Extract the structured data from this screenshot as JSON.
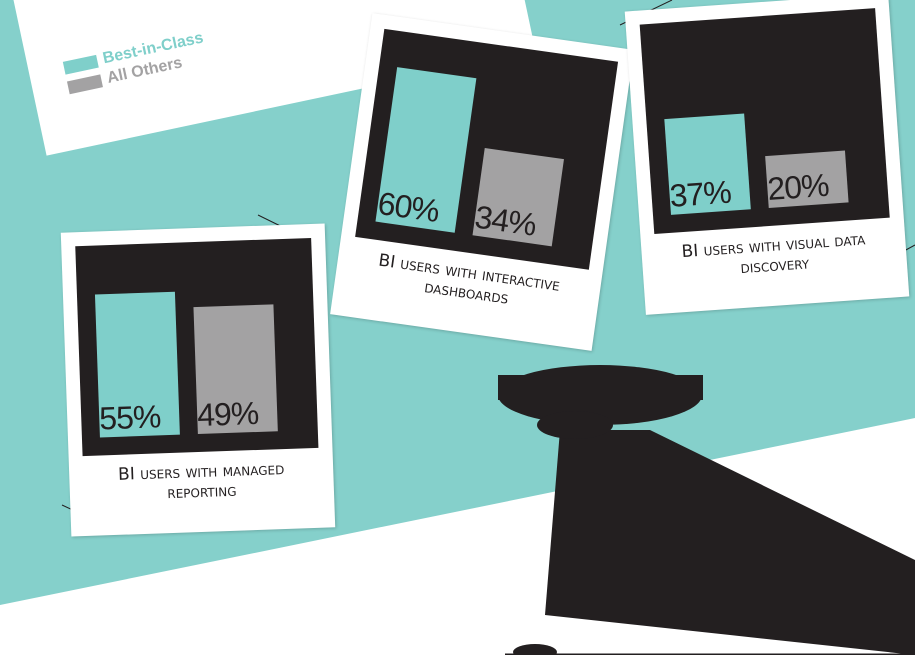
{
  "legend": {
    "items": [
      {
        "name": "Best-in-Class",
        "color": "#7fcfca"
      },
      {
        "name": "All Others",
        "color": "#a3a2a3"
      }
    ]
  },
  "chart_data": [
    {
      "type": "bar",
      "title": "BI users with managed reporting",
      "values": [
        55,
        49
      ],
      "value_labels": [
        "55%",
        "49%"
      ]
    },
    {
      "type": "bar",
      "title": "BI users with interactive dashboards",
      "values": [
        60,
        34
      ],
      "value_labels": [
        "60%",
        "34%"
      ]
    },
    {
      "type": "bar",
      "title": "BI users with visual data discovery",
      "values": [
        37,
        20
      ],
      "value_labels": [
        "37%",
        "20%"
      ]
    }
  ]
}
